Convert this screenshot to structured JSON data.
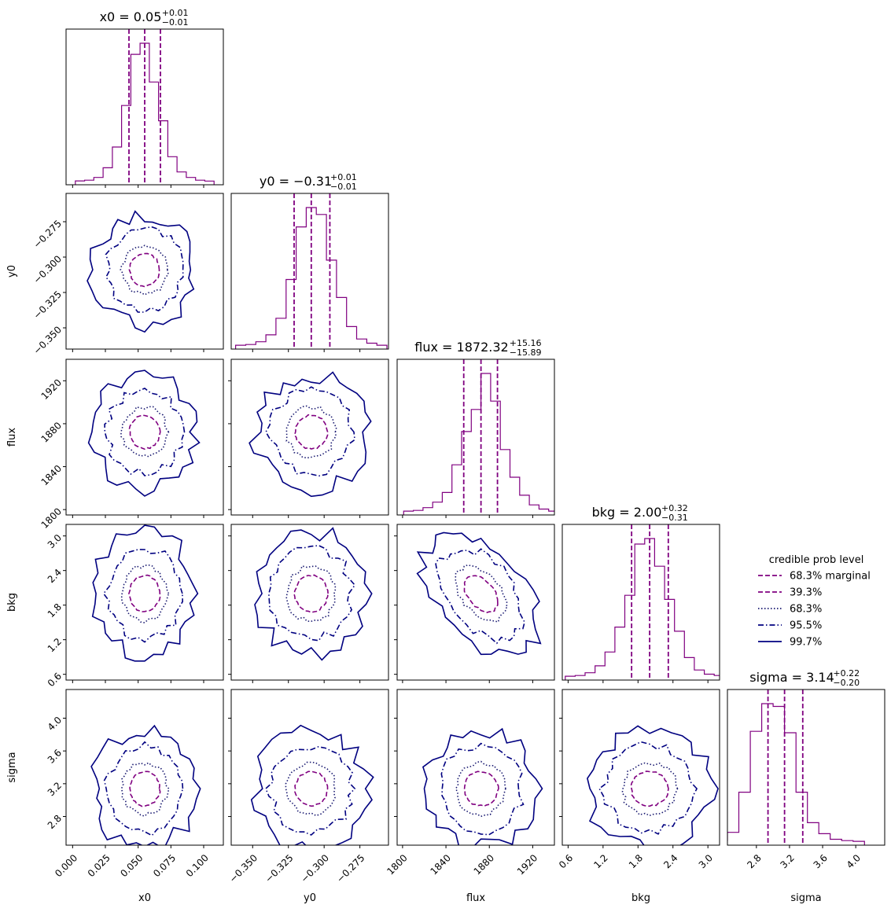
{
  "chart_data": {
    "type": "corner",
    "parameters": [
      "x0",
      "y0",
      "flux",
      "bkg",
      "sigma"
    ],
    "axis_labels": [
      "x0",
      "y0",
      "flux",
      "bkg",
      "sigma"
    ],
    "titles": [
      {
        "name": "x0",
        "eq": " = ",
        "value": "0.05",
        "plus": "+0.01",
        "minus": "−0.01"
      },
      {
        "name": "y0",
        "eq": " = ",
        "value": "−0.31",
        "plus": "+0.01",
        "minus": "−0.01"
      },
      {
        "name": "flux",
        "eq": " = ",
        "value": "1872.32",
        "plus": "+15.16",
        "minus": "−15.89"
      },
      {
        "name": "bkg",
        "eq": " = ",
        "value": "2.00",
        "plus": "+0.32",
        "minus": "−0.31"
      },
      {
        "name": "sigma",
        "eq": " = ",
        "value": "3.14",
        "plus": "+0.22",
        "minus": "−0.20"
      }
    ],
    "means": [
      0.055,
      -0.309,
      1872.3,
      2.0,
      3.14
    ],
    "sigmas": [
      0.0115,
      0.0115,
      15.5,
      0.315,
      0.21
    ],
    "quantiles": [
      [
        0.043,
        0.055,
        0.067
      ],
      [
        -0.321,
        -0.309,
        -0.296
      ],
      [
        1856.4,
        1872.3,
        1887.5
      ],
      [
        1.69,
        2.0,
        2.32
      ],
      [
        2.94,
        3.14,
        3.36
      ]
    ],
    "ranges": [
      [
        -0.005,
        0.115
      ],
      [
        -0.365,
        -0.255
      ],
      [
        1795,
        1940
      ],
      [
        0.5,
        3.2
      ],
      [
        2.45,
        4.35
      ]
    ],
    "ticks": [
      [
        0.0,
        0.025,
        0.05,
        0.075,
        0.1
      ],
      [
        -0.35,
        -0.325,
        -0.3,
        -0.275
      ],
      [
        1800,
        1840,
        1880,
        1920
      ],
      [
        0.6,
        1.2,
        1.8,
        2.4,
        3.0
      ],
      [
        2.8,
        3.2,
        3.6,
        4.0
      ]
    ],
    "tick_labels": [
      [
        "0.000",
        "0.025",
        "0.050",
        "0.075",
        "0.100"
      ],
      [
        "−0.350",
        "−0.325",
        "−0.300",
        "−0.275"
      ],
      [
        "1800",
        "1840",
        "1880",
        "1920"
      ],
      [
        "0.6",
        "1.2",
        "1.8",
        "2.4",
        "3.0"
      ],
      [
        "2.8",
        "3.2",
        "3.6",
        "4.0"
      ]
    ],
    "ytick_labels": [
      null,
      [
        "−0.350",
        "−0.325",
        "−0.300",
        "−0.275"
      ],
      [
        "1800",
        "1840",
        "1880",
        "1920"
      ],
      [
        "0.6",
        "1.2",
        "1.8",
        "2.4",
        "3.0"
      ],
      [
        "2.8",
        "3.2",
        "3.6",
        "4.0"
      ]
    ],
    "histograms": [
      [
        0.5,
        1,
        3,
        10,
        25,
        55,
        92,
        100,
        72,
        44,
        18,
        7,
        3,
        1,
        0.4
      ],
      [
        0.5,
        1,
        3,
        8,
        20,
        48,
        86,
        100,
        95,
        62,
        35,
        14,
        5,
        2,
        0.5
      ],
      [
        0.5,
        1,
        3,
        7,
        14,
        34,
        58,
        74,
        100,
        80,
        45,
        25,
        12,
        5,
        2,
        0.5
      ],
      [
        0.5,
        1,
        3,
        8,
        18,
        36,
        59,
        96,
        100,
        80,
        56,
        33,
        14,
        5,
        2,
        1,
        0.5
      ],
      [
        0.5,
        1,
        7,
        36,
        80,
        100,
        98,
        79,
        36,
        14,
        6,
        2,
        1,
        0.5
      ]
    ],
    "legend": {
      "title": "credible prob level",
      "entries": [
        {
          "label": "68.3% marginal",
          "style": "dashed",
          "color": "#800080"
        },
        {
          "label": "39.3%",
          "style": "dashed",
          "color": "#800080"
        },
        {
          "label": "68.3%",
          "style": "dotted",
          "color": "#191970"
        },
        {
          "label": "95.5%",
          "style": "dashdot",
          "color": "#000080"
        },
        {
          "label": "99.7%",
          "style": "solid",
          "color": "#000080"
        }
      ]
    },
    "contour_levels_sigma": [
      1.0,
      1.5,
      2.5,
      3.4
    ],
    "colors": {
      "marginal": "#800080",
      "level_39": "#800080",
      "level_68": "#191970",
      "level_95": "#000080",
      "level_99": "#000080",
      "axes": "#000000"
    }
  }
}
